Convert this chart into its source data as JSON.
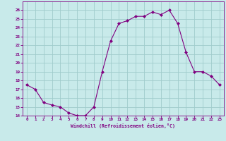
{
  "x": [
    0,
    1,
    2,
    3,
    4,
    5,
    6,
    7,
    8,
    9,
    10,
    11,
    12,
    13,
    14,
    15,
    16,
    17,
    18,
    19,
    20,
    21,
    22,
    23
  ],
  "y": [
    17.5,
    17.0,
    15.5,
    15.2,
    15.0,
    14.3,
    14.0,
    14.0,
    15.0,
    19.0,
    22.5,
    24.5,
    24.8,
    25.3,
    25.3,
    25.8,
    25.5,
    26.0,
    24.5,
    21.2,
    19.0,
    19.0,
    18.5,
    17.5
  ],
  "line_color": "#800080",
  "marker_color": "#800080",
  "bg_color": "#c8eaea",
  "grid_color": "#a0cccc",
  "xlabel": "Windchill (Refroidissement éolien,°C)",
  "xlabel_color": "#800080",
  "tick_color": "#800080",
  "ylim": [
    14,
    27
  ],
  "xlim": [
    -0.5,
    23.5
  ],
  "yticks": [
    14,
    15,
    16,
    17,
    18,
    19,
    20,
    21,
    22,
    23,
    24,
    25,
    26
  ],
  "xticks": [
    0,
    1,
    2,
    3,
    4,
    5,
    6,
    7,
    8,
    9,
    10,
    11,
    12,
    13,
    14,
    15,
    16,
    17,
    18,
    19,
    20,
    21,
    22,
    23
  ],
  "figsize": [
    3.2,
    2.0
  ],
  "dpi": 100
}
